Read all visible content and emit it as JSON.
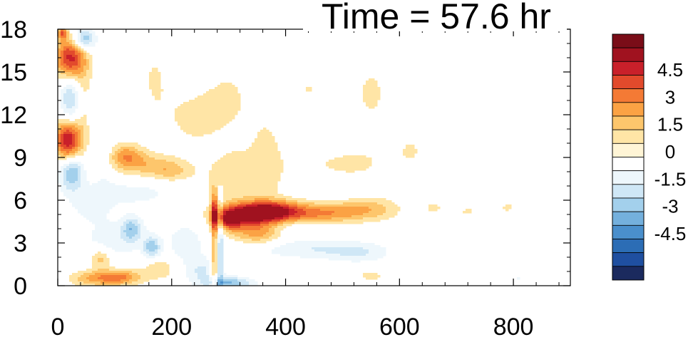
{
  "chart_data": {
    "type": "heatmap",
    "title": "Time = 57.6 hr",
    "xlabel": "",
    "ylabel": "",
    "xlim": [
      0,
      900
    ],
    "ylim": [
      0,
      18
    ],
    "x_ticks": [
      "0",
      "200",
      "400",
      "600",
      "800"
    ],
    "x_tick_values": [
      0,
      200,
      400,
      600,
      800
    ],
    "y_ticks": [
      "0",
      "3",
      "6",
      "9",
      "12",
      "15",
      "18"
    ],
    "y_tick_values": [
      0,
      3,
      6,
      9,
      12,
      15,
      18
    ],
    "grid": false,
    "legend": "right colorbar",
    "colorbar": {
      "tick_labels": [
        "4.5",
        "3",
        "1.5",
        "0",
        "-1.5",
        "-3",
        "-4.5"
      ],
      "tick_values": [
        4.5,
        3,
        1.5,
        0,
        -1.5,
        -3,
        -4.5
      ],
      "levels": [
        -5.25,
        -4.5,
        -3.75,
        -3,
        -2.25,
        -1.5,
        -0.75,
        0,
        0.75,
        1.5,
        2.25,
        3,
        3.75,
        4.5,
        5.25
      ],
      "colors": [
        "#1b2a5e",
        "#1f4fa0",
        "#2c6db5",
        "#4a8fcc",
        "#74b0dd",
        "#a3d0ec",
        "#cfe7f6",
        "#eef7fc",
        "#ffffff",
        "#fff5d6",
        "#ffe5a6",
        "#fdc66c",
        "#fba244",
        "#f47a35",
        "#e24a2c",
        "#c9202a",
        "#a0121f",
        "#7a0d18"
      ]
    },
    "features": [
      {
        "x": 18,
        "y": 10.2,
        "sx": 16,
        "sy": 1.0,
        "v": 5.6
      },
      {
        "x": 22,
        "y": 15.9,
        "sx": 18,
        "sy": 1.1,
        "v": 5.2
      },
      {
        "x": 45,
        "y": 17.3,
        "sx": 14,
        "sy": 0.55,
        "v": -3.6
      },
      {
        "x": 8,
        "y": 17.7,
        "sx": 6,
        "sy": 0.3,
        "v": 3.2
      },
      {
        "x": 22,
        "y": 13.3,
        "sx": 13,
        "sy": 1.5,
        "v": -2.6
      },
      {
        "x": 25,
        "y": 8.0,
        "sx": 15,
        "sy": 0.9,
        "v": -3.4
      },
      {
        "x": 45,
        "y": 13.0,
        "sx": 12,
        "sy": 3.0,
        "v": 0.9
      },
      {
        "x": 80,
        "y": 9.5,
        "sx": 15,
        "sy": 2.0,
        "v": -0.9
      },
      {
        "x": 118,
        "y": 9.2,
        "sx": 22,
        "sy": 0.6,
        "v": 2.3
      },
      {
        "x": 150,
        "y": 8.5,
        "sx": 40,
        "sy": 0.6,
        "v": 1.8
      },
      {
        "x": 200,
        "y": 8.0,
        "sx": 25,
        "sy": 0.5,
        "v": 1.5
      },
      {
        "x": 130,
        "y": 6.5,
        "sx": 60,
        "sy": 0.7,
        "v": -1.0
      },
      {
        "x": 55,
        "y": 5.6,
        "sx": 25,
        "sy": 0.8,
        "v": -1.0
      },
      {
        "x": 130,
        "y": 4.0,
        "sx": 12,
        "sy": 0.6,
        "v": -2.3
      },
      {
        "x": 165,
        "y": 2.7,
        "sx": 10,
        "sy": 0.5,
        "v": -2.6
      },
      {
        "x": 100,
        "y": 3.3,
        "sx": 40,
        "sy": 1.0,
        "v": -1.2
      },
      {
        "x": 225,
        "y": 3.0,
        "sx": 30,
        "sy": 1.5,
        "v": -1.0
      },
      {
        "x": 75,
        "y": 1.9,
        "sx": 12,
        "sy": 0.5,
        "v": 2.0
      },
      {
        "x": 110,
        "y": 0.6,
        "sx": 28,
        "sy": 0.4,
        "v": 3.0
      },
      {
        "x": 60,
        "y": 0.5,
        "sx": 30,
        "sy": 0.4,
        "v": 2.0
      },
      {
        "x": 180,
        "y": 1.2,
        "sx": 20,
        "sy": 0.5,
        "v": 1.6
      },
      {
        "x": 255,
        "y": 1.0,
        "sx": 20,
        "sy": 0.6,
        "v": -1.4
      },
      {
        "x": 275,
        "y": 1.5,
        "sx": 5,
        "sy": 2.0,
        "v": 2.5
      },
      {
        "x": 275,
        "y": 5.2,
        "sx": 4,
        "sy": 1.1,
        "v": 3.5
      },
      {
        "x": 285,
        "y": 2.5,
        "sx": 4,
        "sy": 2.2,
        "v": -2.4
      },
      {
        "x": 300,
        "y": 0.2,
        "sx": 30,
        "sy": 0.3,
        "v": -3.0
      },
      {
        "x": 330,
        "y": 4.9,
        "sx": 40,
        "sy": 0.6,
        "v": 4.6
      },
      {
        "x": 375,
        "y": 5.3,
        "sx": 38,
        "sy": 0.5,
        "v": 3.8
      },
      {
        "x": 440,
        "y": 5.0,
        "sx": 60,
        "sy": 0.5,
        "v": 2.3
      },
      {
        "x": 510,
        "y": 5.3,
        "sx": 50,
        "sy": 0.5,
        "v": 1.5
      },
      {
        "x": 560,
        "y": 5.5,
        "sx": 30,
        "sy": 0.6,
        "v": 0.9
      },
      {
        "x": 300,
        "y": 4.6,
        "sx": 15,
        "sy": 0.5,
        "v": 3.0
      },
      {
        "x": 350,
        "y": 3.6,
        "sx": 30,
        "sy": 0.5,
        "v": 2.3
      },
      {
        "x": 420,
        "y": 4.1,
        "sx": 30,
        "sy": 0.4,
        "v": -0.8
      },
      {
        "x": 440,
        "y": 2.6,
        "sx": 70,
        "sy": 0.5,
        "v": -1.4
      },
      {
        "x": 530,
        "y": 2.3,
        "sx": 40,
        "sy": 0.5,
        "v": -1.2
      },
      {
        "x": 320,
        "y": 7.5,
        "sx": 40,
        "sy": 1.2,
        "v": 1.3
      },
      {
        "x": 370,
        "y": 9.0,
        "sx": 20,
        "sy": 2.0,
        "v": 0.8
      },
      {
        "x": 230,
        "y": 12.0,
        "sx": 30,
        "sy": 1.5,
        "v": 0.8
      },
      {
        "x": 300,
        "y": 13.0,
        "sx": 50,
        "sy": 3.0,
        "v": 0.8
      },
      {
        "x": 230,
        "y": 15.5,
        "sx": 20,
        "sy": 1.5,
        "v": -0.8
      },
      {
        "x": 170,
        "y": 14.5,
        "sx": 20,
        "sy": 2.0,
        "v": 0.8
      },
      {
        "x": 500,
        "y": 8.5,
        "sx": 60,
        "sy": 0.8,
        "v": 0.8
      },
      {
        "x": 550,
        "y": 13.5,
        "sx": 40,
        "sy": 3.0,
        "v": 0.8
      },
      {
        "x": 440,
        "y": 13.8,
        "sx": 12,
        "sy": 0.5,
        "v": 0.8
      },
      {
        "x": 550,
        "y": 0.7,
        "sx": 15,
        "sy": 0.3,
        "v": 1.2
      },
      {
        "x": 660,
        "y": 5.5,
        "sx": 20,
        "sy": 0.6,
        "v": 0.8
      },
      {
        "x": 720,
        "y": 5.2,
        "sx": 20,
        "sy": 0.4,
        "v": 0.8
      },
      {
        "x": 790,
        "y": 5.5,
        "sx": 20,
        "sy": 0.5,
        "v": 0.8
      },
      {
        "x": 810,
        "y": 0.5,
        "sx": 10,
        "sy": 0.3,
        "v": -0.8
      },
      {
        "x": 620,
        "y": 9.5,
        "sx": 15,
        "sy": 0.7,
        "v": 0.8
      }
    ]
  }
}
